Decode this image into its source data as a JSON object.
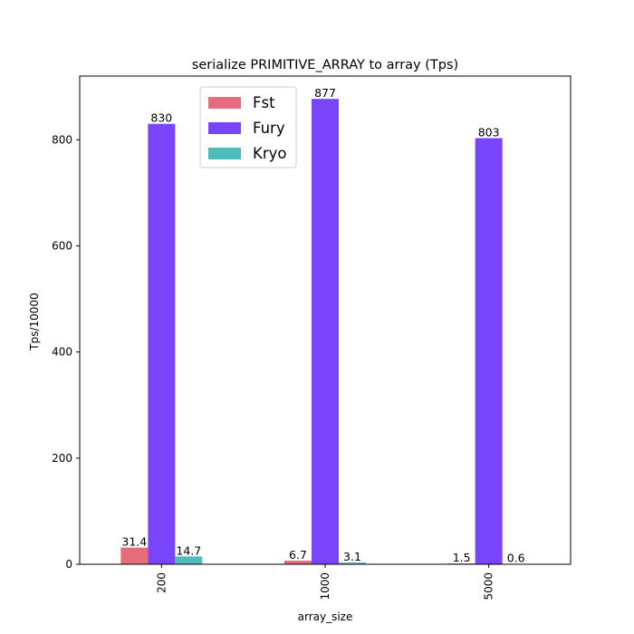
{
  "chart_data": {
    "type": "bar",
    "title": "serialize PRIMITIVE_ARRAY to array (Tps)",
    "xlabel": "array_size",
    "ylabel": "Tps/10000",
    "categories": [
      "200",
      "1000",
      "5000"
    ],
    "ylim": [
      0,
      920
    ],
    "yticks": [
      0,
      200,
      400,
      600,
      800
    ],
    "grid": false,
    "legend_position": "top-center",
    "series": [
      {
        "name": "Fst",
        "color": "#e56b7d",
        "values": [
          31.4,
          6.7,
          1.5
        ],
        "labels": [
          "31.4",
          "6.7",
          "1.5"
        ]
      },
      {
        "name": "Fury",
        "color": "#7845fb",
        "values": [
          830,
          877,
          803
        ],
        "labels": [
          "830",
          "877",
          "803"
        ]
      },
      {
        "name": "Kryo",
        "color": "#4fbcbc",
        "values": [
          14.7,
          3.1,
          0.6
        ],
        "labels": [
          "14.7",
          "3.1",
          "0.6"
        ]
      }
    ]
  }
}
